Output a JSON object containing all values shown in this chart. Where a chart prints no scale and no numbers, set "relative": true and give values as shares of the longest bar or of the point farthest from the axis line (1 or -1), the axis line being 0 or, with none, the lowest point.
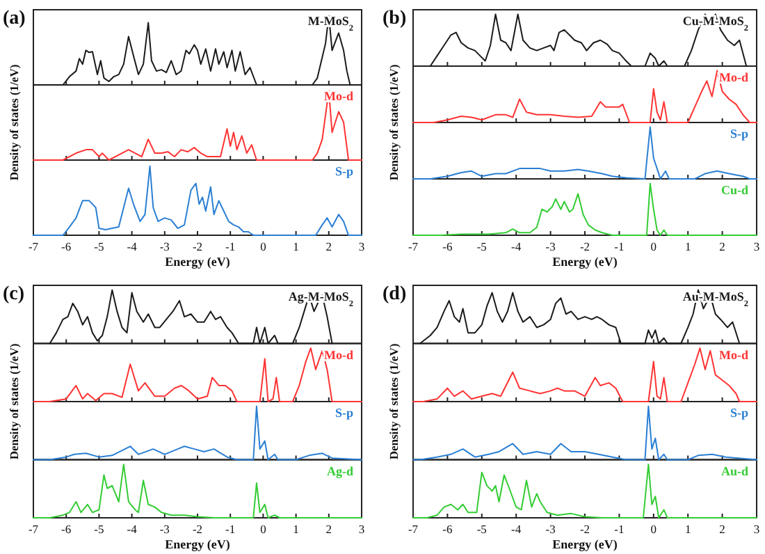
{
  "chart_data": [
    {
      "type": "line",
      "title": "(a)",
      "ylabel": "Density of states (1/eV)",
      "relative": true,
      "xlim": [
        -7,
        3
      ],
      "xticks": [
        -7,
        -6,
        -5,
        -4,
        -3,
        -2,
        -1,
        0,
        1,
        2,
        3
      ],
      "tick_labels": false,
      "x": [
        -7,
        -6.1,
        -5.9,
        -5.7,
        -5.6,
        -5.5,
        -5.4,
        -5.3,
        -5.2,
        -5.05,
        -4.95,
        -4.85,
        -4.7,
        -4.55,
        -4.4,
        -4.25,
        -4.1,
        -3.95,
        -3.8,
        -3.65,
        -3.5,
        -3.4,
        -3.25,
        -3.1,
        -2.95,
        -2.8,
        -2.65,
        -2.5,
        -2.35,
        -2.25,
        -2.1,
        -2,
        -1.9,
        -1.75,
        -1.6,
        -1.45,
        -1.35,
        -1.2,
        -1.1,
        -0.95,
        -0.85,
        -0.7,
        -0.55,
        -0.4,
        -0.2,
        1.5,
        1.65,
        1.8,
        1.9,
        2,
        2.1,
        2.3,
        2.45,
        2.55,
        2.65,
        3
      ],
      "series": [
        {
          "name": "M-MoS$_{2}$",
          "color": "#1a1a1a",
          "values": [
            0,
            0,
            0.12,
            0.2,
            0.38,
            0.3,
            0.5,
            0.47,
            0.48,
            0.15,
            0.35,
            0.1,
            0.05,
            0.12,
            0.15,
            0.3,
            0.7,
            0.42,
            0.15,
            0.3,
            0.9,
            0.35,
            0.2,
            0.22,
            0.18,
            0.35,
            0.15,
            0.2,
            0.5,
            0.45,
            0.58,
            0.5,
            0.3,
            0.52,
            0.2,
            0.52,
            0.3,
            0.48,
            0.25,
            0.5,
            0.2,
            0.48,
            0.15,
            0.25,
            0,
            0,
            0.1,
            0.4,
            0.6,
            1,
            0.5,
            0.75,
            0.5,
            0.2,
            0,
            0
          ]
        }
      ]
    },
    {
      "type": "line",
      "relative": true,
      "xlim": [
        -7,
        3
      ],
      "xticks": [
        -7,
        -6,
        -5,
        -4,
        -3,
        -2,
        -1,
        0,
        1,
        2,
        3
      ],
      "tick_labels": false,
      "x": [
        -7,
        -6.1,
        -5.7,
        -5.4,
        -5.2,
        -5,
        -4.9,
        -4.7,
        -4.3,
        -4.1,
        -3.9,
        -3.7,
        -3.5,
        -3.3,
        -3.1,
        -2.9,
        -2.7,
        -2.5,
        -2.3,
        -2.1,
        -1.9,
        -1.7,
        -1.5,
        -1.3,
        -1.1,
        -1,
        -0.9,
        -0.8,
        -0.65,
        -0.5,
        -0.35,
        -0.2,
        1.5,
        1.65,
        1.8,
        2,
        2.1,
        2.3,
        2.45,
        2.6,
        3
      ],
      "series": [
        {
          "name": "Mo-d",
          "color": "#ff3333",
          "values": [
            0,
            0,
            0.1,
            0.15,
            0.15,
            0.05,
            0.1,
            0,
            0.1,
            0.15,
            0.1,
            0.05,
            0.3,
            0.1,
            0.1,
            0.12,
            0.05,
            0.15,
            0.12,
            0.18,
            0.1,
            0.05,
            0.05,
            0.05,
            0.45,
            0.2,
            0.4,
            0.15,
            0.35,
            0.1,
            0.22,
            0,
            0,
            0.1,
            0.3,
            1,
            0.4,
            0.7,
            0.55,
            0,
            0
          ]
        }
      ]
    },
    {
      "type": "line",
      "relative": true,
      "xlim": [
        -7,
        3
      ],
      "xticks": [
        -7,
        -6,
        -5,
        -4,
        -3,
        -2,
        -1,
        0,
        1,
        2,
        3
      ],
      "tick_labels": "x",
      "xlabel": "Energy (eV)",
      "x": [
        -7,
        -6.1,
        -5.9,
        -5.7,
        -5.5,
        -5.3,
        -5.1,
        -5,
        -4.8,
        -4.6,
        -4.4,
        -4.1,
        -3.95,
        -3.75,
        -3.6,
        -3.45,
        -3.35,
        -3.2,
        -3,
        -2.8,
        -2.6,
        -2.4,
        -2.2,
        -2.05,
        -1.95,
        -1.85,
        -1.75,
        -1.6,
        -1.5,
        -1.35,
        -1.2,
        -1.05,
        -0.9,
        -0.75,
        -0.6,
        -0.45,
        -0.3,
        1.6,
        1.8,
        1.95,
        2.1,
        2.3,
        2.45,
        2.6,
        3
      ],
      "series": [
        {
          "name": "S-p",
          "color": "#2a7fd4",
          "values": [
            0,
            0,
            0.12,
            0.25,
            0.5,
            0.5,
            0.4,
            0.1,
            0.08,
            0.1,
            0.12,
            0.68,
            0.45,
            0.2,
            0.3,
            1,
            0.4,
            0.2,
            0.25,
            0.22,
            0.1,
            0.15,
            0.65,
            0.75,
            0.45,
            0.55,
            0.35,
            0.7,
            0.3,
            0.5,
            0.35,
            0.2,
            0.15,
            0.12,
            0.05,
            0.05,
            0,
            0,
            0.15,
            0.25,
            0.12,
            0.3,
            0.2,
            0,
            0
          ]
        }
      ]
    },
    {
      "type": "line",
      "title": "(b)",
      "ylabel": "Density of states (1/eV)",
      "relative": true,
      "xlim": [
        -7,
        3
      ],
      "xticks": [
        -7,
        -6,
        -5,
        -4,
        -3,
        -2,
        -1,
        0,
        1,
        2,
        3
      ],
      "tick_labels": false,
      "x": [
        -6.5,
        -6.3,
        -6.1,
        -5.9,
        -5.75,
        -5.6,
        -5.4,
        -5.2,
        -5.05,
        -4.9,
        -4.75,
        -4.6,
        -4.45,
        -4.3,
        -4.15,
        -3.95,
        -3.8,
        -3.6,
        -3.4,
        -3.2,
        -3,
        -2.9,
        -2.75,
        -2.6,
        -2.45,
        -2.3,
        -2.1,
        -1.95,
        -1.75,
        -1.55,
        -1.35,
        -1.2,
        -1,
        -0.8,
        -0.65,
        -0.25,
        -0.1,
        0.05,
        0.15,
        0.3,
        0.4,
        0.9,
        1.1,
        1.3,
        1.5,
        1.65,
        1.8,
        1.95,
        2.15,
        2.35,
        2.5,
        2.7
      ],
      "series": [
        {
          "name": "Cu-M-MoS$_{2}$",
          "color": "#1a1a1a",
          "values": [
            0,
            0.2,
            0.4,
            0.6,
            0.65,
            0.45,
            0.35,
            0.3,
            0.2,
            0.1,
            0.4,
            1,
            0.5,
            0.45,
            0.3,
            1,
            0.5,
            0.35,
            0.3,
            0.35,
            0.4,
            0.3,
            0.65,
            0.7,
            0.6,
            0.5,
            0.45,
            0.3,
            0.45,
            0.5,
            0.42,
            0.3,
            0.25,
            0.1,
            0,
            0,
            0.25,
            0.15,
            0,
            0.1,
            0,
            0,
            0.3,
            0.7,
            1,
            0.8,
            1,
            0.7,
            0.5,
            0.4,
            0.5,
            0
          ]
        }
      ]
    },
    {
      "type": "line",
      "relative": true,
      "xlim": [
        -7,
        3
      ],
      "xticks": [
        -7,
        -6,
        -5,
        -4,
        -3,
        -2,
        -1,
        0,
        1,
        2,
        3
      ],
      "tick_labels": false,
      "x": [
        -7,
        -6.4,
        -6,
        -5.6,
        -5.3,
        -5,
        -4.6,
        -4.3,
        -4.1,
        -3.9,
        -3.7,
        -3.4,
        -3,
        -2.6,
        -2.2,
        -1.8,
        -1.55,
        -1.4,
        -1.2,
        -1,
        -0.9,
        -0.7,
        -0.1,
        0,
        0.1,
        0.2,
        0.3,
        0.4,
        1,
        1.2,
        1.4,
        1.55,
        1.7,
        1.85,
        2,
        2.2,
        2.4,
        2.6,
        2.8,
        3
      ],
      "series": [
        {
          "name": "Mo-d",
          "color": "#ff3333",
          "values": [
            0,
            0,
            0.05,
            0.12,
            0.1,
            0.05,
            0.15,
            0.15,
            0.1,
            0.45,
            0.2,
            0.15,
            0.15,
            0.12,
            0.1,
            0.12,
            0.4,
            0.3,
            0.3,
            0.3,
            0.35,
            0,
            0,
            0.65,
            0.2,
            0.05,
            0.4,
            0,
            0,
            0.3,
            0.6,
            0.8,
            0.5,
            1,
            0.6,
            0.45,
            0.35,
            0.15,
            0,
            0
          ]
        }
      ]
    },
    {
      "type": "line",
      "relative": true,
      "xlim": [
        -7,
        3
      ],
      "xticks": [
        -7,
        -6,
        -5,
        -4,
        -3,
        -2,
        -1,
        0,
        1,
        2,
        3
      ],
      "tick_labels": false,
      "x": [
        -7,
        -6.5,
        -6,
        -5.6,
        -5.3,
        -5,
        -4.6,
        -4.3,
        -3.9,
        -3.6,
        -3.3,
        -3,
        -2.6,
        -2.2,
        -1.9,
        -1.5,
        -1.2,
        -0.8,
        -0.25,
        -0.1,
        0,
        0.1,
        0.2,
        0.35,
        0.45,
        1.2,
        1.5,
        1.85,
        2.2,
        2.6,
        2.8,
        3
      ],
      "series": [
        {
          "name": "S-p",
          "color": "#2a7fd4",
          "values": [
            0,
            0,
            0.05,
            0.12,
            0.15,
            0.05,
            0.1,
            0.1,
            0.2,
            0.2,
            0.2,
            0.15,
            0.15,
            0.18,
            0.15,
            0.1,
            0.05,
            0.02,
            0,
            1,
            0.4,
            0.2,
            0,
            0.15,
            0,
            0,
            0.1,
            0.15,
            0.1,
            0.05,
            0,
            0
          ]
        }
      ]
    },
    {
      "type": "line",
      "relative": true,
      "xlim": [
        -7,
        3
      ],
      "xticks": [
        -7,
        -6,
        -5,
        -4,
        -3,
        -2,
        -1,
        0,
        1,
        2,
        3
      ],
      "tick_labels": "x",
      "xlabel": "Energy (eV)",
      "x": [
        -7,
        -6.2,
        -5.6,
        -4.8,
        -4.3,
        -4.1,
        -3.9,
        -3.6,
        -3.4,
        -3.25,
        -3.1,
        -2.95,
        -2.85,
        -2.7,
        -2.6,
        -2.45,
        -2.35,
        -2.2,
        -2.05,
        -1.9,
        -1.7,
        -1.5,
        -1.2,
        -0.2,
        -0.1,
        0,
        0.1,
        0.2,
        0.3,
        0.4,
        3
      ],
      "series": [
        {
          "name": "Cu-d",
          "color": "#33cc33",
          "values": [
            0,
            0,
            0.02,
            0.02,
            0.05,
            0.12,
            0.05,
            0.05,
            0.15,
            0.5,
            0.45,
            0.55,
            0.7,
            0.5,
            0.65,
            0.45,
            0.5,
            0.8,
            0.4,
            0.2,
            0.1,
            0.05,
            0,
            0,
            1,
            0.5,
            0.1,
            0,
            0.1,
            0,
            0
          ]
        }
      ]
    },
    {
      "type": "line",
      "title": "(c)",
      "ylabel": "Density of states (1/eV)",
      "relative": true,
      "xlim": [
        -7,
        3
      ],
      "xticks": [
        -7,
        -6,
        -5,
        -4,
        -3,
        -2,
        -1,
        0,
        1,
        2,
        3
      ],
      "tick_labels": false,
      "x": [
        -6.5,
        -6.3,
        -6.1,
        -5.95,
        -5.8,
        -5.65,
        -5.5,
        -5.35,
        -5.2,
        -5.05,
        -4.9,
        -4.75,
        -4.6,
        -4.45,
        -4.3,
        -4.15,
        -4,
        -3.85,
        -3.65,
        -3.5,
        -3.3,
        -3.15,
        -2.95,
        -2.75,
        -2.55,
        -2.4,
        -2.2,
        -2,
        -1.8,
        -1.6,
        -1.45,
        -1.3,
        -1.1,
        -0.95,
        -0.75,
        -0.3,
        -0.2,
        -0.1,
        0.05,
        0.15,
        0.35,
        0.45,
        0.9,
        1.1,
        1.25,
        1.4,
        1.55,
        1.7,
        1.8,
        1.95,
        2.1
      ],
      "series": [
        {
          "name": "Ag-M-MoS$_{2}$",
          "color": "#1a1a1a",
          "values": [
            0,
            0.2,
            0.45,
            0.5,
            0.75,
            0.6,
            0.35,
            0.5,
            0.2,
            0.05,
            0.15,
            0.5,
            1,
            0.6,
            0.3,
            0.2,
            0.95,
            0.6,
            0.4,
            0.55,
            0.3,
            0.3,
            0.45,
            0.6,
            0.8,
            0.5,
            0.55,
            0.4,
            0.4,
            0.6,
            0.45,
            0.5,
            0.3,
            0.2,
            0,
            0,
            0.3,
            0,
            0.3,
            0,
            0.15,
            0,
            0,
            0.3,
            0.6,
            0.9,
            0.6,
            0.8,
            0.9,
            0.5,
            0
          ]
        }
      ]
    },
    {
      "type": "line",
      "relative": true,
      "xlim": [
        -7,
        3
      ],
      "xticks": [
        -7,
        -6,
        -5,
        -4,
        -3,
        -2,
        -1,
        0,
        1,
        2,
        3
      ],
      "tick_labels": false,
      "x": [
        -7,
        -6.5,
        -6,
        -5.7,
        -5.5,
        -5.35,
        -5.1,
        -4.85,
        -4.6,
        -4.3,
        -4.05,
        -3.8,
        -3.6,
        -3.3,
        -3,
        -2.7,
        -2.5,
        -2.3,
        -2,
        -1.7,
        -1.55,
        -1.35,
        -1.15,
        -0.95,
        -0.8,
        -0.1,
        0.05,
        0.15,
        0.3,
        0.4,
        0.5,
        0.9,
        1.1,
        1.3,
        1.45,
        1.6,
        1.8,
        1.95,
        2.1,
        3
      ],
      "series": [
        {
          "name": "Mo-d",
          "color": "#ff3333",
          "values": [
            0,
            0,
            0.05,
            0.3,
            0.05,
            0.15,
            0.02,
            0.15,
            0.15,
            0.08,
            0.7,
            0.2,
            0.35,
            0.1,
            0.1,
            0.25,
            0.3,
            0.22,
            0.05,
            0.1,
            0.45,
            0.3,
            0.3,
            0.2,
            0,
            0,
            0.8,
            0,
            0.05,
            0.45,
            0,
            0,
            0.3,
            0.75,
            1,
            0.6,
            0.95,
            0.6,
            0,
            0
          ]
        }
      ]
    },
    {
      "type": "line",
      "relative": true,
      "xlim": [
        -7,
        3
      ],
      "xticks": [
        -7,
        -6,
        -5,
        -4,
        -3,
        -2,
        -1,
        0,
        1,
        2,
        3
      ],
      "tick_labels": false,
      "x": [
        -7,
        -6.5,
        -6,
        -5.75,
        -5.4,
        -5,
        -4.6,
        -4.05,
        -3.8,
        -3.35,
        -3,
        -2.6,
        -2.4,
        -2.1,
        -1.8,
        -1.5,
        -1.1,
        -0.8,
        -0.3,
        -0.2,
        -0.1,
        0.05,
        0.15,
        0.35,
        0.45,
        1,
        1.4,
        1.8,
        2.1,
        3
      ],
      "series": [
        {
          "name": "S-p",
          "color": "#2a7fd4",
          "values": [
            0,
            0,
            0.05,
            0.1,
            0.12,
            0.05,
            0.08,
            0.25,
            0.1,
            0.2,
            0.1,
            0.2,
            0.25,
            0.2,
            0.15,
            0.2,
            0.05,
            0,
            0,
            1,
            0.2,
            0.35,
            0,
            0.1,
            0,
            0,
            0.08,
            0.12,
            0.03,
            0
          ]
        }
      ]
    },
    {
      "type": "line",
      "relative": true,
      "xlim": [
        -7,
        3
      ],
      "xticks": [
        -7,
        -6,
        -5,
        -4,
        -3,
        -2,
        -1,
        0,
        1,
        2,
        3
      ],
      "tick_labels": "x",
      "xlabel": "Energy (eV)",
      "x": [
        -7,
        -6.5,
        -6.1,
        -5.9,
        -5.7,
        -5.55,
        -5.35,
        -5.2,
        -5,
        -4.85,
        -4.75,
        -4.6,
        -4.5,
        -4.4,
        -4.25,
        -4.1,
        -3.9,
        -3.8,
        -3.65,
        -3.5,
        -3.3,
        -3.1,
        -2.8,
        -2.4,
        -2,
        -1.5,
        -0.3,
        -0.2,
        -0.1,
        0.05,
        0.15,
        0.35,
        0.5,
        3
      ],
      "series": [
        {
          "name": "Ag-d",
          "color": "#33cc33",
          "values": [
            0,
            0,
            0.05,
            0.1,
            0.3,
            0.1,
            0.25,
            0.1,
            0.15,
            0.8,
            0.55,
            0.6,
            0.45,
            0.3,
            1,
            0.3,
            0.15,
            0.1,
            0.7,
            0.25,
            0.2,
            0.1,
            0.05,
            0.05,
            0.02,
            0,
            0,
            0.65,
            0.1,
            0.25,
            0,
            0.05,
            0,
            0
          ]
        }
      ]
    },
    {
      "type": "line",
      "title": "(d)",
      "ylabel": "Density of states (1/eV)",
      "relative": true,
      "xlim": [
        -7,
        3
      ],
      "xticks": [
        -7,
        -6,
        -5,
        -4,
        -3,
        -2,
        -1,
        0,
        1,
        2,
        3
      ],
      "tick_labels": false,
      "x": [
        -6.8,
        -6.5,
        -6.3,
        -6.1,
        -5.95,
        -5.8,
        -5.65,
        -5.55,
        -5.4,
        -5.2,
        -5,
        -4.85,
        -4.7,
        -4.55,
        -4.4,
        -4.25,
        -4.1,
        -3.95,
        -3.8,
        -3.6,
        -3.4,
        -3.2,
        -3,
        -2.85,
        -2.7,
        -2.55,
        -2.4,
        -2.2,
        -2,
        -1.8,
        -1.65,
        -1.5,
        -1.3,
        -1.1,
        -0.95,
        -0.25,
        -0.15,
        -0.05,
        0.05,
        0.15,
        0.3,
        0.4,
        0.8,
        1,
        1.15,
        1.3,
        1.45,
        1.65,
        1.8,
        1.95,
        2.15,
        2.3,
        2.5
      ],
      "series": [
        {
          "name": "Au-M-MoS$_{2}$",
          "color": "#1a1a1a",
          "values": [
            0,
            0.15,
            0.3,
            0.6,
            0.8,
            0.5,
            0.4,
            0.65,
            0.2,
            0.2,
            0.35,
            0.7,
            0.95,
            0.6,
            0.4,
            0.6,
            0.95,
            0.6,
            0.4,
            0.5,
            0.3,
            0.35,
            0.45,
            0.75,
            0.85,
            0.55,
            0.6,
            0.45,
            0.5,
            0.45,
            0.5,
            0.45,
            0.35,
            0.3,
            0,
            0,
            0.25,
            0.1,
            0.25,
            0,
            0.1,
            0,
            0,
            0.3,
            0.55,
            1,
            0.65,
            0.9,
            0.55,
            0.45,
            0.3,
            0.4,
            0
          ]
        }
      ]
    },
    {
      "type": "line",
      "relative": true,
      "xlim": [
        -7,
        3
      ],
      "xticks": [
        -7,
        -6,
        -5,
        -4,
        -3,
        -2,
        -1,
        0,
        1,
        2,
        3
      ],
      "tick_labels": false,
      "x": [
        -7,
        -6.7,
        -6.3,
        -6,
        -5.8,
        -5.55,
        -5.3,
        -5,
        -4.7,
        -4.45,
        -4.1,
        -3.9,
        -3.6,
        -3.3,
        -3,
        -2.8,
        -2.6,
        -2.3,
        -2,
        -1.7,
        -1.55,
        -1.3,
        -1.1,
        -0.9,
        -0.15,
        0,
        0.1,
        0.2,
        0.3,
        0.4,
        0.8,
        1,
        1.2,
        1.35,
        1.5,
        1.65,
        1.8,
        2,
        2.2,
        2.4,
        2.5,
        3
      ],
      "series": [
        {
          "name": "Mo-d",
          "color": "#ff3333",
          "values": [
            0,
            0,
            0.05,
            0.25,
            0.1,
            0.2,
            0.05,
            0.1,
            0.15,
            0.1,
            0.55,
            0.25,
            0.2,
            0.15,
            0.2,
            0.25,
            0.2,
            0.2,
            0.1,
            0.45,
            0.3,
            0.35,
            0.25,
            0,
            0,
            0.75,
            0.1,
            0.05,
            0.45,
            0,
            0,
            0.35,
            0.7,
            1,
            0.6,
            0.95,
            0.5,
            0.4,
            0.3,
            0.15,
            0,
            0
          ]
        }
      ]
    },
    {
      "type": "line",
      "relative": true,
      "xlim": [
        -7,
        3
      ],
      "xticks": [
        -7,
        -6,
        -5,
        -4,
        -3,
        -2,
        -1,
        0,
        1,
        2,
        3
      ],
      "tick_labels": false,
      "x": [
        -7,
        -6.8,
        -6.3,
        -5.9,
        -5.55,
        -5.2,
        -4.8,
        -4.5,
        -4.1,
        -3.8,
        -3.4,
        -3,
        -2.7,
        -2.4,
        -2,
        -1.6,
        -1.2,
        -0.8,
        -0.25,
        -0.15,
        -0.05,
        0.05,
        0.15,
        0.3,
        0.4,
        1,
        1.3,
        1.7,
        2.1,
        3
      ],
      "series": [
        {
          "name": "S-p",
          "color": "#2a7fd4",
          "values": [
            0,
            0,
            0.05,
            0.1,
            0.2,
            0.05,
            0.1,
            0.15,
            0.3,
            0.1,
            0.15,
            0.1,
            0.3,
            0.15,
            0.15,
            0.1,
            0.05,
            0,
            0,
            1,
            0.2,
            0.4,
            0,
            0.1,
            0,
            0,
            0.08,
            0.1,
            0.05,
            0
          ]
        }
      ]
    },
    {
      "type": "line",
      "relative": true,
      "xlim": [
        -7,
        3
      ],
      "xticks": [
        -7,
        -6,
        -5,
        -4,
        -3,
        -2,
        -1,
        0,
        1,
        2,
        3
      ],
      "tick_labels": "x",
      "xlabel": "Energy (eV)",
      "x": [
        -7,
        -6.6,
        -6.3,
        -6.1,
        -5.9,
        -5.7,
        -5.55,
        -5.4,
        -5.15,
        -5,
        -4.85,
        -4.7,
        -4.6,
        -4.5,
        -4.35,
        -4.2,
        -4,
        -3.85,
        -3.7,
        -3.55,
        -3.4,
        -3.3,
        -3.1,
        -2.8,
        -2.4,
        -2,
        -1.5,
        -0.3,
        -0.15,
        -0.05,
        0.05,
        0.15,
        0.3,
        0.4,
        3
      ],
      "series": [
        {
          "name": "Au-d",
          "color": "#33cc33",
          "values": [
            0,
            0,
            0.05,
            0.2,
            0.25,
            0.15,
            0.25,
            0.1,
            0.1,
            0.85,
            0.6,
            0.5,
            0.6,
            0.3,
            0.8,
            0.55,
            0.2,
            0.15,
            0.7,
            0.2,
            0.45,
            0.3,
            0.1,
            0.05,
            0.08,
            0.02,
            0,
            0,
            1,
            0.25,
            0.4,
            0,
            0.15,
            0,
            0
          ]
        }
      ]
    }
  ]
}
